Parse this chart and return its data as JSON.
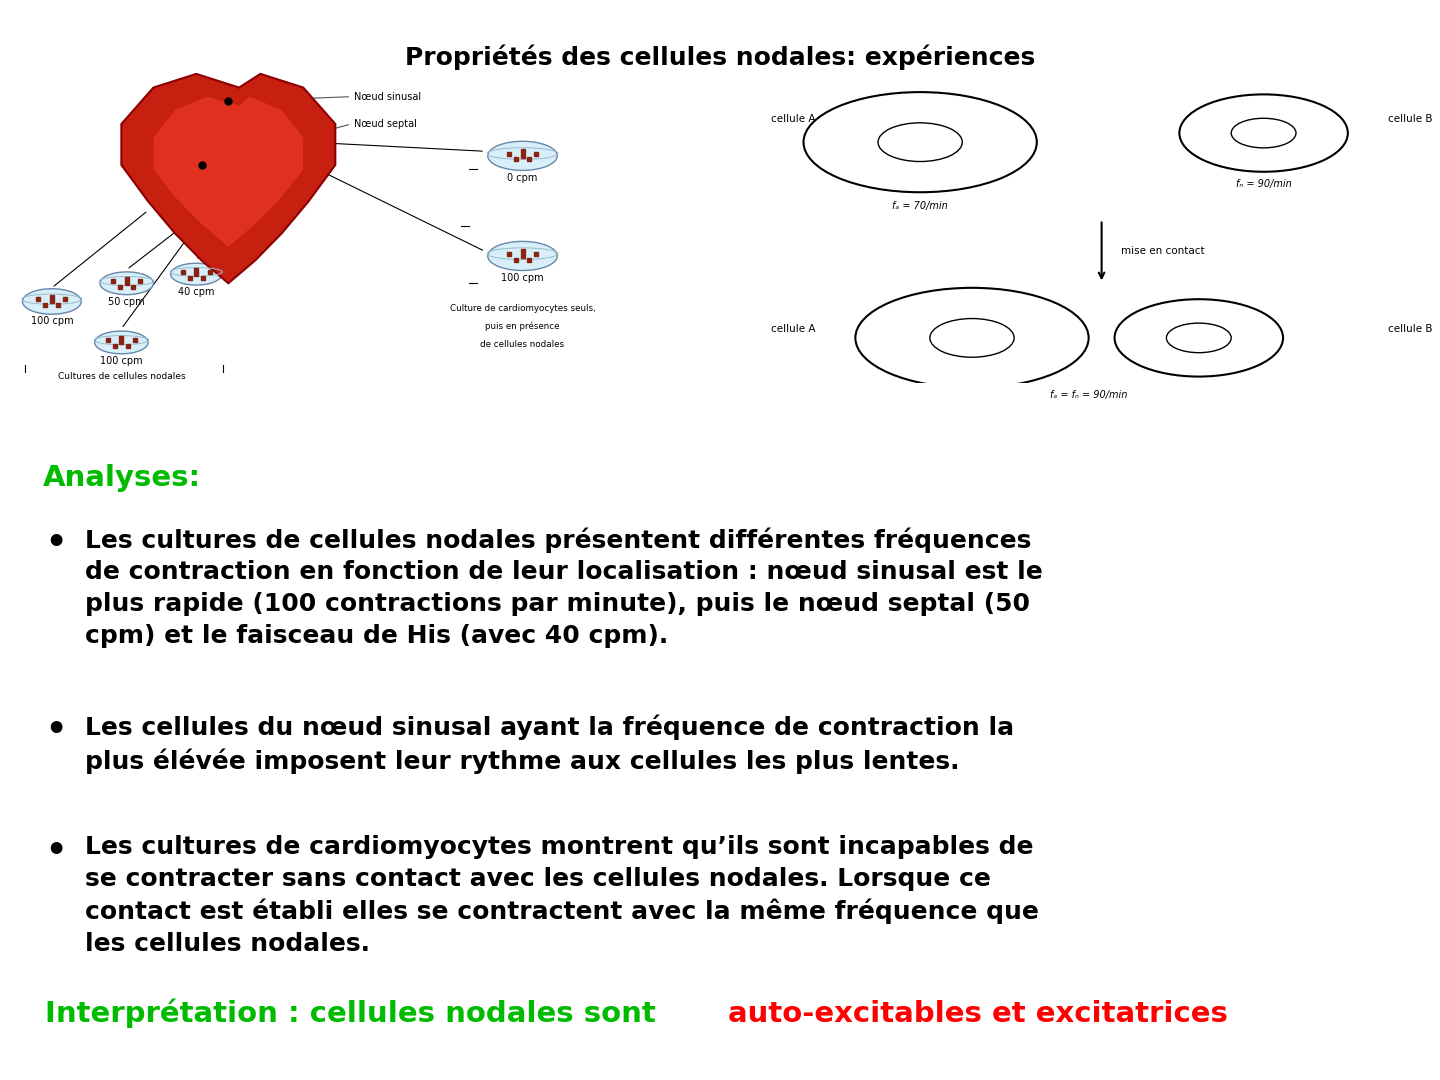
{
  "title": "Propriétés des cellules nodales: expériences",
  "title_fontsize": 18,
  "title_color": "#000000",
  "background_color": "#ffffff",
  "analyses_label": "Analyses:",
  "analyses_color": "#00bb00",
  "analyses_fontsize": 21,
  "bullet_points": [
    "Les cultures de cellules nodales présentent différentes fréquences\nde contraction en fonction de leur localisation : nœud sinusal est le\nplus rapide (100 contractions par minute), puis le nœud septal (50\ncpm) et le faisceau de His (avec 40 cpm).",
    "Les cellules du nœud sinusal ayant la fréquence de contraction la\nplus élévée imposent leur rythme aux cellules les plus lentes.",
    "Les cultures de cardiomyocytes montrent qu’ils sont incapables de\nse contracter sans contact avec les cellules nodales. Lorsque ce\ncontact est établi elles se contractent avec la même fréquence que\nles cellules nodales."
  ],
  "bullet_fontsize": 18,
  "bullet_color": "#000000",
  "interpretation_prefix": "Interprétation : cellules nodales sont ",
  "interpretation_highlight": "auto-excitables et excitatrices",
  "interpretation_prefix_color": "#00bb00",
  "interpretation_highlight_color": "#ff0000",
  "interpretation_fontsize": 21,
  "diagram_bg": "#f8f8f0"
}
